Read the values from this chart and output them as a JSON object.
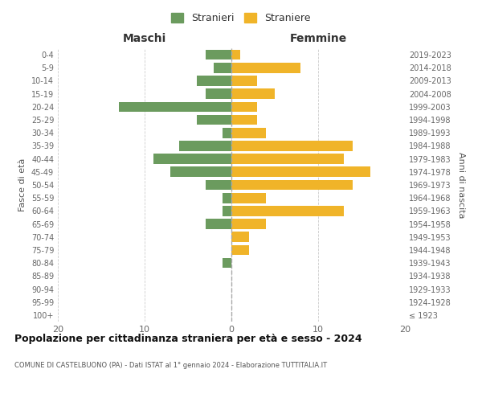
{
  "age_groups": [
    "100+",
    "95-99",
    "90-94",
    "85-89",
    "80-84",
    "75-79",
    "70-74",
    "65-69",
    "60-64",
    "55-59",
    "50-54",
    "45-49",
    "40-44",
    "35-39",
    "30-34",
    "25-29",
    "20-24",
    "15-19",
    "10-14",
    "5-9",
    "0-4"
  ],
  "birth_years": [
    "≤ 1923",
    "1924-1928",
    "1929-1933",
    "1934-1938",
    "1939-1943",
    "1944-1948",
    "1949-1953",
    "1954-1958",
    "1959-1963",
    "1964-1968",
    "1969-1973",
    "1974-1978",
    "1979-1983",
    "1984-1988",
    "1989-1993",
    "1994-1998",
    "1999-2003",
    "2004-2008",
    "2009-2013",
    "2014-2018",
    "2019-2023"
  ],
  "maschi": [
    0,
    0,
    0,
    0,
    1,
    0,
    0,
    3,
    1,
    1,
    3,
    7,
    9,
    6,
    1,
    4,
    13,
    3,
    4,
    2,
    3
  ],
  "femmine": [
    0,
    0,
    0,
    0,
    0,
    2,
    2,
    4,
    13,
    4,
    14,
    16,
    13,
    14,
    4,
    3,
    3,
    5,
    3,
    8,
    1
  ],
  "maschi_color": "#6b9b5e",
  "femmine_color": "#f0b429",
  "background_color": "#ffffff",
  "grid_color": "#cccccc",
  "title": "Popolazione per cittadinanza straniera per età e sesso - 2024",
  "subtitle": "COMUNE DI CASTELBUONO (PA) - Dati ISTAT al 1° gennaio 2024 - Elaborazione TUTTITALIA.IT",
  "legend_stranieri": "Stranieri",
  "legend_straniere": "Straniere",
  "xlabel_left": "Maschi",
  "xlabel_right": "Femmine",
  "ylabel_left": "Fasce di età",
  "ylabel_right": "Anni di nascita",
  "xlim": 20
}
